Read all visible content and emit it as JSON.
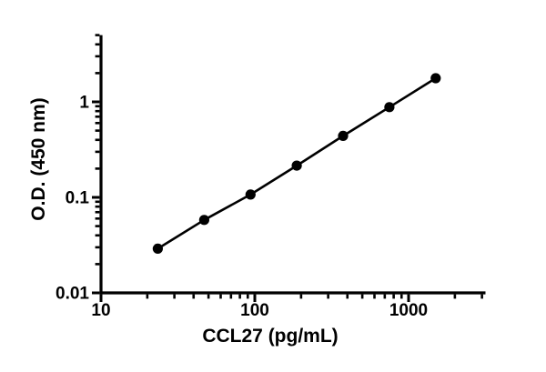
{
  "figure": {
    "background_color": "#ffffff",
    "ink_color": "#000000"
  },
  "chart_data": {
    "type": "scatter",
    "title": "",
    "xlabel": "CCL27 (pg/mL)",
    "ylabel": "O.D. (450 nm)",
    "xscale": "log",
    "yscale": "log",
    "xlim": [
      10,
      3162
    ],
    "ylim": [
      0.01,
      5
    ],
    "grid": false,
    "legend": "none",
    "series": [
      {
        "name": "CCL27 standard curve",
        "marker": "filled-circle",
        "line_style": "solid",
        "color": "#000000",
        "points": [
          {
            "x": 23.4,
            "y": 0.029
          },
          {
            "x": 46.9,
            "y": 0.058
          },
          {
            "x": 93.8,
            "y": 0.107
          },
          {
            "x": 187.5,
            "y": 0.215
          },
          {
            "x": 375,
            "y": 0.44
          },
          {
            "x": 750,
            "y": 0.88
          },
          {
            "x": 1500,
            "y": 1.77
          }
        ]
      }
    ],
    "x_axis": {
      "label": "CCL27 (pg/mL)",
      "major_ticks": [
        {
          "value": 10,
          "label": "10"
        },
        {
          "value": 100,
          "label": "100"
        },
        {
          "value": 1000,
          "label": "1000"
        }
      ],
      "minor_ticks": [
        20,
        30,
        40,
        50,
        60,
        70,
        80,
        90,
        200,
        300,
        400,
        500,
        600,
        700,
        800,
        900,
        2000,
        3000
      ]
    },
    "y_axis": {
      "label": "O.D. (450 nm)",
      "major_ticks": [
        {
          "value": 0.01,
          "label": "0.01"
        },
        {
          "value": 0.1,
          "label": "0.1"
        },
        {
          "value": 1,
          "label": "1"
        }
      ],
      "minor_ticks": [
        0.02,
        0.03,
        0.04,
        0.05,
        0.06,
        0.07,
        0.08,
        0.09,
        0.2,
        0.3,
        0.4,
        0.5,
        0.6,
        0.7,
        0.8,
        0.9,
        2,
        3,
        4,
        5
      ]
    }
  }
}
